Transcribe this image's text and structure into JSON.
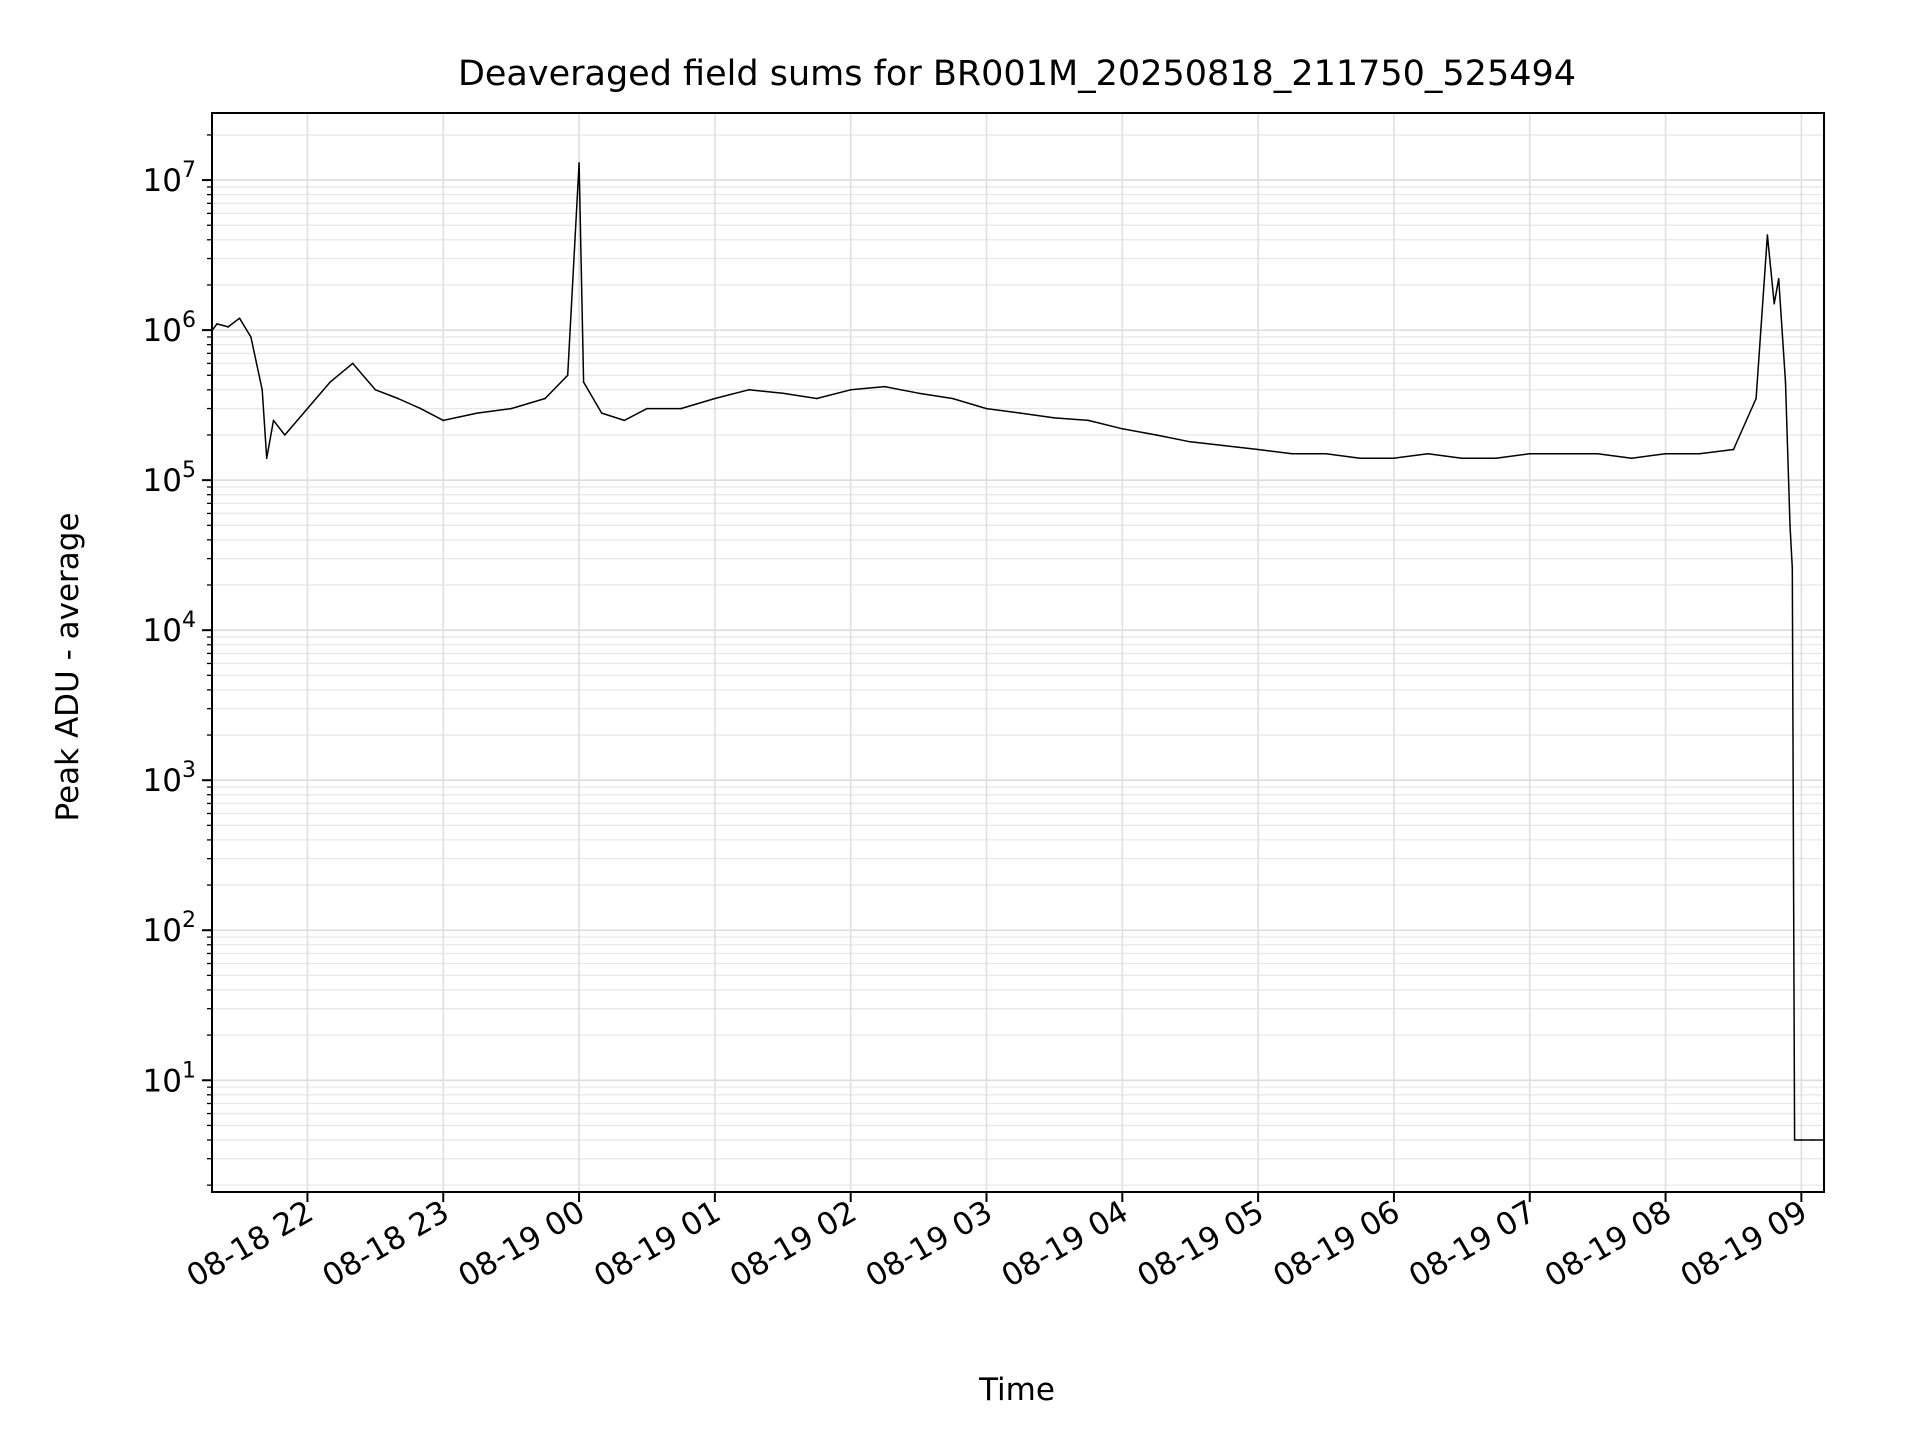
{
  "chart_data": {
    "type": "line",
    "title": "Deaveraged field sums for BR001M_20250818_211750_525494",
    "xlabel": "Time",
    "ylabel": "Peak ADU - average",
    "yscale": "log",
    "ylim": [
      1.8,
      28000000
    ],
    "xlim": [
      "2025-08-18 21:17:50",
      "2025-08-19 09:10:00"
    ],
    "grid": true,
    "legend": "none",
    "line_color": "#000000",
    "x_tick_labels": [
      "08-18 22",
      "08-18 23",
      "08-19 00",
      "08-19 01",
      "08-19 02",
      "08-19 03",
      "08-19 04",
      "08-19 05",
      "08-19 06",
      "08-19 07",
      "08-19 08",
      "08-19 09"
    ],
    "x_tick_values": [
      "2025-08-18 22:00",
      "2025-08-18 23:00",
      "2025-08-19 00:00",
      "2025-08-19 01:00",
      "2025-08-19 02:00",
      "2025-08-19 03:00",
      "2025-08-19 04:00",
      "2025-08-19 05:00",
      "2025-08-19 06:00",
      "2025-08-19 07:00",
      "2025-08-19 08:00",
      "2025-08-19 09:00"
    ],
    "y_ticks": [
      {
        "value": 10,
        "base": "10",
        "exp": "1"
      },
      {
        "value": 100,
        "base": "10",
        "exp": "2"
      },
      {
        "value": 1000,
        "base": "10",
        "exp": "3"
      },
      {
        "value": 10000,
        "base": "10",
        "exp": "4"
      },
      {
        "value": 100000,
        "base": "10",
        "exp": "5"
      },
      {
        "value": 1000000,
        "base": "10",
        "exp": "6"
      },
      {
        "value": 10000000,
        "base": "10",
        "exp": "7"
      }
    ],
    "series": [
      {
        "x": [
          "2025-08-18 21:18",
          "2025-08-18 21:20",
          "2025-08-18 21:25",
          "2025-08-18 21:30",
          "2025-08-18 21:35",
          "2025-08-18 21:40",
          "2025-08-18 21:42",
          "2025-08-18 21:45",
          "2025-08-18 21:50",
          "2025-08-18 22:00",
          "2025-08-18 22:10",
          "2025-08-18 22:20",
          "2025-08-18 22:30",
          "2025-08-18 22:40",
          "2025-08-18 22:50",
          "2025-08-18 23:00",
          "2025-08-18 23:15",
          "2025-08-18 23:30",
          "2025-08-18 23:45",
          "2025-08-18 23:55",
          "2025-08-19 00:00",
          "2025-08-19 00:02",
          "2025-08-19 00:10",
          "2025-08-19 00:20",
          "2025-08-19 00:30",
          "2025-08-19 00:45",
          "2025-08-19 01:00",
          "2025-08-19 01:15",
          "2025-08-19 01:30",
          "2025-08-19 01:45",
          "2025-08-19 02:00",
          "2025-08-19 02:15",
          "2025-08-19 02:30",
          "2025-08-19 02:45",
          "2025-08-19 03:00",
          "2025-08-19 03:15",
          "2025-08-19 03:30",
          "2025-08-19 03:45",
          "2025-08-19 04:00",
          "2025-08-19 04:15",
          "2025-08-19 04:30",
          "2025-08-19 04:45",
          "2025-08-19 05:00",
          "2025-08-19 05:15",
          "2025-08-19 05:30",
          "2025-08-19 05:45",
          "2025-08-19 06:00",
          "2025-08-19 06:15",
          "2025-08-19 06:30",
          "2025-08-19 06:45",
          "2025-08-19 07:00",
          "2025-08-19 07:15",
          "2025-08-19 07:30",
          "2025-08-19 07:45",
          "2025-08-19 08:00",
          "2025-08-19 08:15",
          "2025-08-19 08:30",
          "2025-08-19 08:40",
          "2025-08-19 08:45",
          "2025-08-19 08:48",
          "2025-08-19 08:50",
          "2025-08-19 08:53",
          "2025-08-19 08:55",
          "2025-08-19 08:56",
          "2025-08-19 08:57",
          "2025-08-19 09:00",
          "2025-08-19 09:05",
          "2025-08-19 09:10"
        ],
        "y": [
          1000000,
          1100000,
          1050000,
          1200000,
          900000,
          400000,
          140000,
          250000,
          200000,
          300000,
          450000,
          600000,
          400000,
          350000,
          300000,
          250000,
          280000,
          300000,
          350000,
          500000,
          13000000,
          450000,
          280000,
          250000,
          300000,
          300000,
          350000,
          400000,
          380000,
          350000,
          400000,
          420000,
          380000,
          350000,
          300000,
          280000,
          260000,
          250000,
          220000,
          200000,
          180000,
          170000,
          160000,
          150000,
          150000,
          140000,
          140000,
          150000,
          140000,
          140000,
          150000,
          150000,
          150000,
          140000,
          150000,
          150000,
          160000,
          350000,
          4300000,
          1500000,
          2200000,
          450000,
          50000,
          26000,
          4,
          4,
          4,
          4
        ]
      }
    ]
  }
}
